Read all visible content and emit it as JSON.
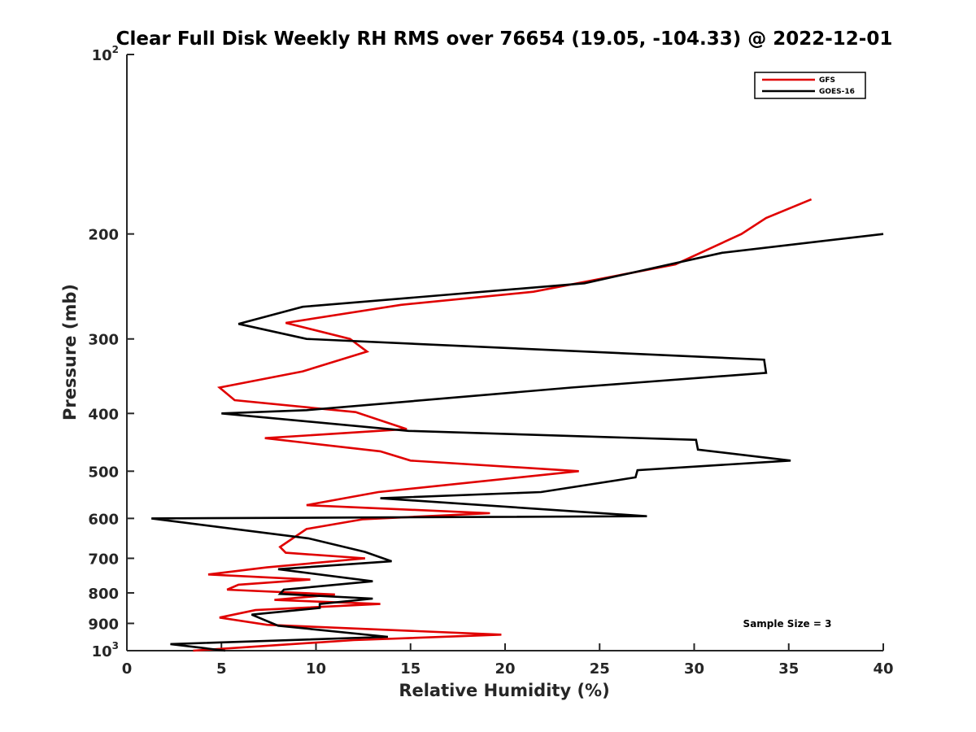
{
  "chart_data": {
    "type": "line",
    "title": "Clear Full Disk Weekly RH RMS over 76654 (19.05, -104.33) @ 2022-12-01",
    "xlabel": "Relative Humidity (%)",
    "ylabel": "Pressure (mb)",
    "xlim": [
      0,
      40
    ],
    "ylim": [
      100,
      1000
    ],
    "y_scale": "log",
    "y_reversed": true,
    "x_ticks": [
      "0",
      "5",
      "10",
      "15",
      "20",
      "25",
      "30",
      "35",
      "40"
    ],
    "x_tick_values": [
      0,
      5,
      10,
      15,
      20,
      25,
      30,
      35,
      40
    ],
    "y_ticks": [
      {
        "value": 100,
        "base": "10",
        "exp": "2"
      },
      {
        "value": 200,
        "label": "200"
      },
      {
        "value": 300,
        "label": "300"
      },
      {
        "value": 400,
        "label": "400"
      },
      {
        "value": 500,
        "label": "500"
      },
      {
        "value": 600,
        "label": "600"
      },
      {
        "value": 700,
        "label": "700"
      },
      {
        "value": 800,
        "label": "800"
      },
      {
        "value": 900,
        "label": "900"
      },
      {
        "value": 1000,
        "base": "10",
        "exp": "3"
      }
    ],
    "legend": {
      "position": "top-right"
    },
    "annotation": "Sample Size = 3",
    "series": [
      {
        "name": "GFS",
        "color": "#e00000",
        "points": [
          [
            36.2,
            175
          ],
          [
            33.8,
            188
          ],
          [
            32.5,
            200
          ],
          [
            29.0,
            225
          ],
          [
            21.5,
            250
          ],
          [
            14.5,
            263
          ],
          [
            8.4,
            282
          ],
          [
            11.8,
            300
          ],
          [
            12.7,
            315
          ],
          [
            9.3,
            340
          ],
          [
            4.9,
            362
          ],
          [
            5.7,
            380
          ],
          [
            12.1,
            398
          ],
          [
            14.8,
            425
          ],
          [
            7.3,
            440
          ],
          [
            13.4,
            463
          ],
          [
            15.0,
            480
          ],
          [
            23.9,
            500
          ],
          [
            13.3,
            542
          ],
          [
            9.5,
            570
          ],
          [
            19.2,
            588
          ],
          [
            12.5,
            602
          ],
          [
            9.5,
            625
          ],
          [
            8.1,
            670
          ],
          [
            8.4,
            685
          ],
          [
            12.6,
            700
          ],
          [
            7.4,
            725
          ],
          [
            4.3,
            745
          ],
          [
            9.7,
            760
          ],
          [
            5.9,
            775
          ],
          [
            5.3,
            790
          ],
          [
            11.0,
            805
          ],
          [
            7.8,
            822
          ],
          [
            13.4,
            835
          ],
          [
            6.8,
            855
          ],
          [
            4.9,
            880
          ],
          [
            7.4,
            905
          ],
          [
            19.8,
            940
          ],
          [
            12.0,
            960
          ],
          [
            3.5,
            1000
          ]
        ]
      },
      {
        "name": "GOES-16",
        "color": "#000000",
        "points": [
          [
            40.0,
            200
          ],
          [
            31.5,
            215
          ],
          [
            24.2,
            242
          ],
          [
            9.3,
            265
          ],
          [
            5.9,
            283
          ],
          [
            9.5,
            300
          ],
          [
            33.7,
            325
          ],
          [
            33.8,
            342
          ],
          [
            23.5,
            362
          ],
          [
            9.5,
            395
          ],
          [
            5.0,
            400
          ],
          [
            14.9,
            428
          ],
          [
            30.1,
            443
          ],
          [
            30.2,
            460
          ],
          [
            35.1,
            480
          ],
          [
            27.0,
            498
          ],
          [
            26.9,
            512
          ],
          [
            21.9,
            542
          ],
          [
            13.4,
            555
          ],
          [
            27.5,
            595
          ],
          [
            1.3,
            600
          ],
          [
            9.6,
            648
          ],
          [
            12.6,
            683
          ],
          [
            14.0,
            708
          ],
          [
            8.0,
            730
          ],
          [
            13.0,
            765
          ],
          [
            8.3,
            790
          ],
          [
            8.1,
            803
          ],
          [
            13.0,
            818
          ],
          [
            10.2,
            835
          ],
          [
            10.2,
            848
          ],
          [
            6.6,
            870
          ],
          [
            8.0,
            908
          ],
          [
            13.8,
            948
          ],
          [
            2.3,
            975
          ],
          [
            5.2,
            1000
          ]
        ]
      }
    ]
  }
}
